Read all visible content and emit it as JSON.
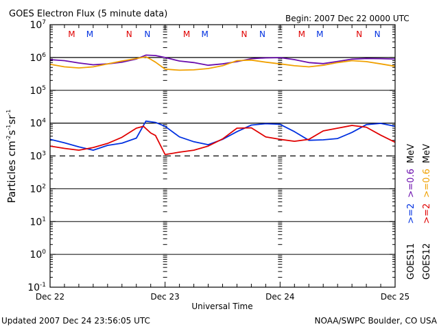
{
  "header": {
    "title": "GOES Electron Flux (5 minute data)",
    "begin": "Begin: 2007 Dec 22 0000 UTC"
  },
  "footer": {
    "updated": "Updated 2007 Dec 24 23:56:05 UTC",
    "credit": "NOAA/SWPC Boulder, CO USA"
  },
  "chart_data": {
    "type": "line",
    "title": "GOES Electron Flux (5 minute data)",
    "xlabel": "Universal Time",
    "ylabel": "Particles cm-2s-1sr-1",
    "ylabel_parts": {
      "base": "Particles cm",
      "e1": "-2",
      "s": "s",
      "e2": "-1",
      "sr": "sr",
      "e3": "-1"
    },
    "yscale": "log",
    "ylim": [
      0.1,
      10000000
    ],
    "y_ticks": [
      {
        "base": "10",
        "exp": "7",
        "value": 10000000
      },
      {
        "base": "10",
        "exp": "6",
        "value": 1000000
      },
      {
        "base": "10",
        "exp": "5",
        "value": 100000
      },
      {
        "base": "10",
        "exp": "4",
        "value": 10000
      },
      {
        "base": "10",
        "exp": "3",
        "value": 1000
      },
      {
        "base": "10",
        "exp": "2",
        "value": 100
      },
      {
        "base": "10",
        "exp": "1",
        "value": 10
      },
      {
        "base": "10",
        "exp": "0",
        "value": 1
      },
      {
        "base": "10",
        "exp": "-1",
        "value": 0.1
      }
    ],
    "xlim_hours": [
      0,
      72
    ],
    "x_ticks": [
      {
        "label": "Dec 22",
        "hour": 0
      },
      {
        "label": "Dec 23",
        "hour": 24
      },
      {
        "label": "Dec 24",
        "hour": 48
      },
      {
        "label": "Dec 25",
        "hour": 72
      }
    ],
    "x_minor_tick_hours": 3,
    "reference_lines": [
      {
        "value": 1000000,
        "style": "solid"
      },
      {
        "value": 10000,
        "style": "solid"
      },
      {
        "value": 1000,
        "style": "dashed"
      }
    ],
    "grid_decades_solid": [
      100000,
      100,
      10,
      1
    ],
    "markers": [
      {
        "label": "M",
        "hour": 4.5,
        "color": "#e00000"
      },
      {
        "label": "M",
        "hour": 8.3,
        "color": "#0030e0"
      },
      {
        "label": "N",
        "hour": 16.5,
        "color": "#e00000"
      },
      {
        "label": "N",
        "hour": 20.3,
        "color": "#0030e0"
      },
      {
        "label": "M",
        "hour": 28.5,
        "color": "#e00000"
      },
      {
        "label": "M",
        "hour": 32.3,
        "color": "#0030e0"
      },
      {
        "label": "N",
        "hour": 40.5,
        "color": "#e00000"
      },
      {
        "label": "N",
        "hour": 44.3,
        "color": "#0030e0"
      },
      {
        "label": "M",
        "hour": 52.5,
        "color": "#e00000"
      },
      {
        "label": "M",
        "hour": 56.3,
        "color": "#0030e0"
      },
      {
        "label": "N",
        "hour": 64.5,
        "color": "#e00000"
      },
      {
        "label": "N",
        "hour": 68.3,
        "color": "#0030e0"
      }
    ],
    "series": [
      {
        "name": "GOES11 >=0.6 MeV",
        "color": "#6a0dad",
        "hours": [
          0,
          3,
          6,
          9,
          12,
          15,
          18,
          20,
          22,
          24,
          27,
          30,
          33,
          36,
          39,
          42,
          45,
          48,
          51,
          54,
          57,
          60,
          63,
          66,
          69,
          72
        ],
        "values": [
          860000,
          800000,
          680000,
          600000,
          640000,
          720000,
          900000,
          1180000,
          1150000,
          1000000,
          780000,
          700000,
          580000,
          640000,
          750000,
          920000,
          970000,
          990000,
          860000,
          700000,
          650000,
          760000,
          890000,
          930000,
          920000,
          900000
        ]
      },
      {
        "name": "GOES12 >=0.6 MeV",
        "color": "#f0a000",
        "hours": [
          0,
          3,
          6,
          9,
          12,
          15,
          18,
          20,
          21,
          22,
          24,
          27,
          30,
          33,
          36,
          39,
          42,
          45,
          48,
          51,
          54,
          57,
          60,
          63,
          66,
          69,
          72
        ],
        "values": [
          620000,
          520000,
          480000,
          520000,
          640000,
          780000,
          930000,
          1050000,
          880000,
          720000,
          440000,
          410000,
          420000,
          460000,
          560000,
          800000,
          830000,
          720000,
          640000,
          560000,
          520000,
          580000,
          700000,
          800000,
          750000,
          640000,
          540000
        ]
      },
      {
        "name": "GOES11 >=2 MeV",
        "color": "#0030e0",
        "hours": [
          0,
          3,
          6,
          9,
          12,
          15,
          18,
          20,
          22,
          24,
          27,
          30,
          33,
          36,
          39,
          42,
          45,
          48,
          51,
          54,
          57,
          60,
          63,
          66,
          69,
          72
        ],
        "values": [
          3200.0,
          2500,
          1900,
          1500,
          2100,
          2450,
          3500,
          11500,
          10500,
          8000,
          3800,
          2700,
          2200,
          3200,
          5500,
          8700,
          9600,
          9200,
          5500,
          3000,
          3100,
          3400,
          5200,
          9000,
          9800,
          8000
        ]
      },
      {
        "name": "GOES12 >=2 MeV",
        "color": "#e00000",
        "hours": [
          0,
          3,
          6,
          9,
          12,
          15,
          18,
          19.5,
          21,
          22,
          24,
          27,
          30,
          33,
          36,
          39,
          42,
          45,
          48,
          51,
          54,
          57,
          60,
          63,
          66,
          69,
          72
        ],
        "values": [
          2000,
          1700,
          1500,
          1800,
          2400,
          3700,
          7000,
          8000,
          5000,
          4200,
          1100,
          1300,
          1500,
          2000,
          3300,
          7000,
          7200,
          3800,
          3200,
          2800,
          3200,
          5800,
          7000,
          8500,
          7500,
          4300,
          2600
        ]
      }
    ],
    "legend": [
      {
        "col": 1,
        "parts": [
          {
            "text": "GOES11",
            "color": "#000000"
          },
          {
            "text": ">=2",
            "color": "#0030e0"
          },
          {
            "text": ">=0.6",
            "color": "#6a0dad"
          },
          {
            "text": "MeV",
            "color": "#000000"
          }
        ]
      },
      {
        "col": 2,
        "parts": [
          {
            "text": "GOES12",
            "color": "#000000"
          },
          {
            "text": ">=2",
            "color": "#e00000"
          },
          {
            "text": ">=0.6",
            "color": "#f0a000"
          },
          {
            "text": "MeV",
            "color": "#000000"
          }
        ]
      }
    ],
    "legend_placement": "right (vertical)"
  }
}
